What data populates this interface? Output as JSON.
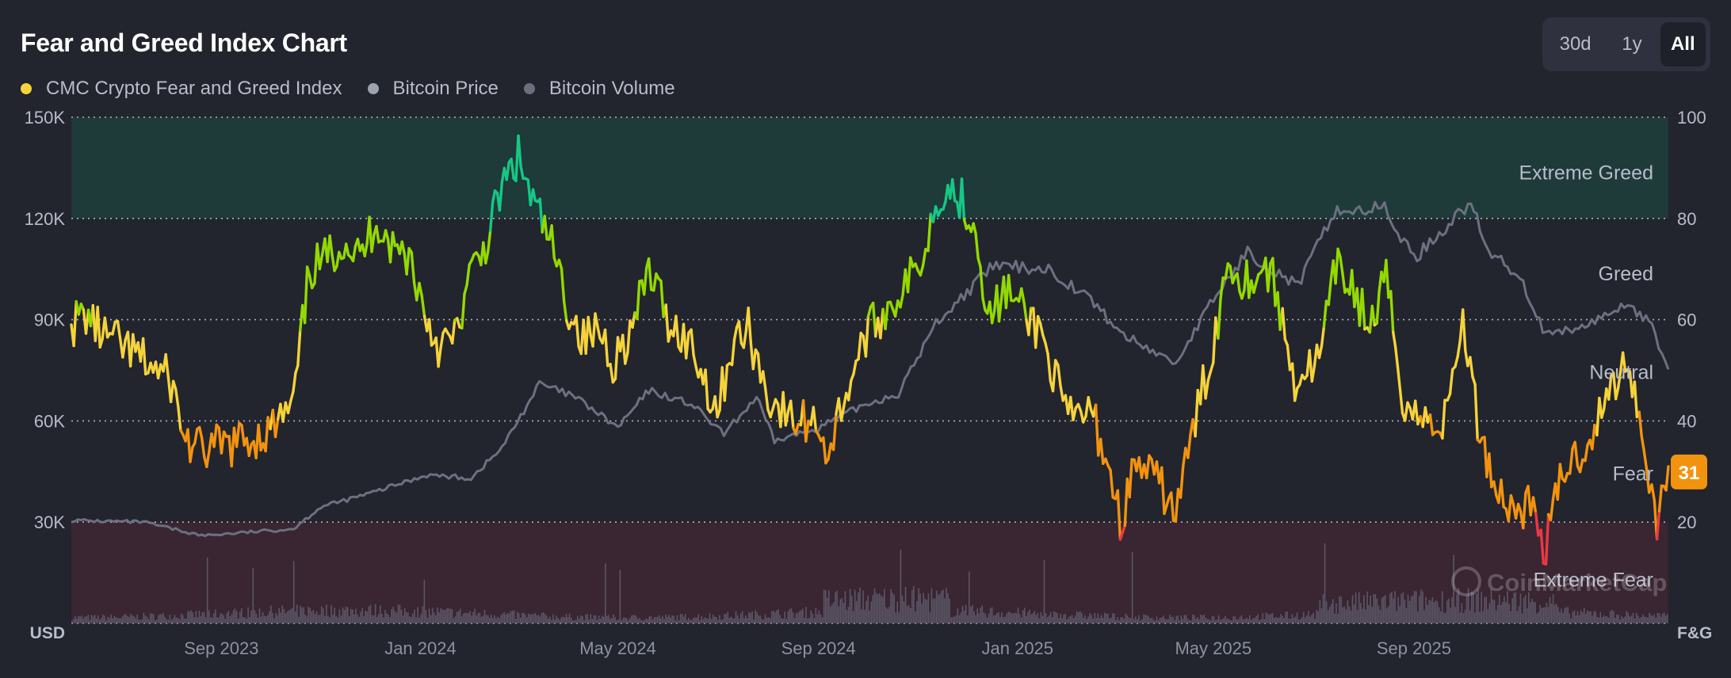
{
  "title": "Fear and Greed Index Chart",
  "legend": {
    "items": [
      {
        "label": "CMC Crypto Fear and Greed Index",
        "color": "#f5d33b"
      },
      {
        "label": "Bitcoin Price",
        "color": "#9ea3b0"
      },
      {
        "label": "Bitcoin Volume",
        "color": "#6b6f7d"
      }
    ]
  },
  "range_selector": {
    "options": [
      "30d",
      "1y",
      "All"
    ],
    "selected": "All"
  },
  "current_badge": {
    "value": "31",
    "color": "#f2930f"
  },
  "chart_data": {
    "type": "line",
    "x_axis": {
      "tick_labels": [
        "Sep 2023",
        "Jan 2024",
        "May 2024",
        "Sep 2024",
        "Jan 2025",
        "May 2025",
        "Sep 2025"
      ],
      "range": [
        "2023-06-01",
        "2026-02-04"
      ]
    },
    "y_left": {
      "label": "USD",
      "tick_labels": [
        "150K",
        "120K",
        "90K",
        "60K",
        "30K"
      ],
      "ticks": [
        150000,
        120000,
        90000,
        60000,
        30000
      ],
      "range": [
        0,
        150000
      ]
    },
    "y_right": {
      "label": "F&G",
      "tick_labels": [
        "100",
        "80",
        "60",
        "40",
        "20"
      ],
      "ticks": [
        100,
        80,
        60,
        40,
        20
      ],
      "range": [
        0,
        100
      ]
    },
    "zones": [
      {
        "label": "Extreme Greed",
        "from": 80,
        "to": 100,
        "color": "#1e3a39"
      },
      {
        "label": "Greed",
        "from": 60,
        "to": 80
      },
      {
        "label": "Neutral",
        "from": 40,
        "to": 60
      },
      {
        "label": "Fear",
        "from": 20,
        "to": 40
      },
      {
        "label": "Extreme Fear",
        "from": 0,
        "to": 20,
        "color": "#3a2532"
      }
    ],
    "grid": true,
    "watermark": "CoinMarketCap",
    "series": [
      {
        "name": "CMC Crypto Fear and Greed Index",
        "axis": "right",
        "colors": {
          "extreme_fear": "#ea3943",
          "fear": "#f2930f",
          "neutral": "#f5d33b",
          "greed": "#93d900",
          "extreme_greed": "#16c784"
        },
        "points": [
          [
            "2023-06-01",
            59
          ],
          [
            "2023-06-10",
            61
          ],
          [
            "2023-06-20",
            57
          ],
          [
            "2023-07-01",
            55
          ],
          [
            "2023-07-15",
            52
          ],
          [
            "2023-08-01",
            48
          ],
          [
            "2023-08-10",
            36
          ],
          [
            "2023-08-20",
            34
          ],
          [
            "2023-09-01",
            35
          ],
          [
            "2023-09-15",
            36
          ],
          [
            "2023-10-01",
            38
          ],
          [
            "2023-10-15",
            43
          ],
          [
            "2023-10-25",
            70
          ],
          [
            "2023-11-05",
            72
          ],
          [
            "2023-11-15",
            76
          ],
          [
            "2023-11-25",
            72
          ],
          [
            "2023-12-05",
            80
          ],
          [
            "2023-12-15",
            74
          ],
          [
            "2023-12-25",
            73
          ],
          [
            "2024-01-05",
            60
          ],
          [
            "2024-01-12",
            55
          ],
          [
            "2024-01-22",
            56
          ],
          [
            "2024-01-31",
            68
          ],
          [
            "2024-02-10",
            75
          ],
          [
            "2024-02-20",
            86
          ],
          [
            "2024-03-01",
            92
          ],
          [
            "2024-03-10",
            83
          ],
          [
            "2024-03-20",
            76
          ],
          [
            "2024-04-01",
            62
          ],
          [
            "2024-04-10",
            56
          ],
          [
            "2024-04-20",
            58
          ],
          [
            "2024-04-28",
            52
          ],
          [
            "2024-05-10",
            58
          ],
          [
            "2024-05-20",
            70
          ],
          [
            "2024-06-01",
            60
          ],
          [
            "2024-06-15",
            55
          ],
          [
            "2024-07-01",
            42
          ],
          [
            "2024-07-10",
            55
          ],
          [
            "2024-07-20",
            58
          ],
          [
            "2024-08-01",
            45
          ],
          [
            "2024-08-15",
            40
          ],
          [
            "2024-09-01",
            40
          ],
          [
            "2024-09-07",
            33
          ],
          [
            "2024-09-15",
            43
          ],
          [
            "2024-09-30",
            57
          ],
          [
            "2024-10-15",
            63
          ],
          [
            "2024-11-01",
            70
          ],
          [
            "2024-11-15",
            86
          ],
          [
            "2024-11-25",
            85
          ],
          [
            "2024-12-05",
            80
          ],
          [
            "2024-12-15",
            60
          ],
          [
            "2024-12-25",
            66
          ],
          [
            "2025-01-05",
            61
          ],
          [
            "2025-01-15",
            58
          ],
          [
            "2025-02-01",
            40
          ],
          [
            "2025-02-15",
            42
          ],
          [
            "2025-02-27",
            30
          ],
          [
            "2025-03-05",
            20
          ],
          [
            "2025-03-15",
            32
          ],
          [
            "2025-04-01",
            26
          ],
          [
            "2025-04-08",
            22
          ],
          [
            "2025-04-20",
            40
          ],
          [
            "2025-05-01",
            55
          ],
          [
            "2025-05-10",
            72
          ],
          [
            "2025-05-20",
            68
          ],
          [
            "2025-06-05",
            70
          ],
          [
            "2025-06-20",
            48
          ],
          [
            "2025-07-05",
            52
          ],
          [
            "2025-07-15",
            70
          ],
          [
            "2025-07-25",
            67
          ],
          [
            "2025-08-05",
            58
          ],
          [
            "2025-08-15",
            68
          ],
          [
            "2025-08-25",
            45
          ],
          [
            "2025-09-05",
            40
          ],
          [
            "2025-09-20",
            40
          ],
          [
            "2025-10-01",
            60
          ],
          [
            "2025-10-10",
            40
          ],
          [
            "2025-10-20",
            28
          ],
          [
            "2025-11-01",
            22
          ],
          [
            "2025-11-10",
            24
          ],
          [
            "2025-11-21",
            15
          ],
          [
            "2025-12-01",
            30
          ],
          [
            "2025-12-15",
            35
          ],
          [
            "2025-12-28",
            44
          ],
          [
            "2026-01-10",
            53
          ],
          [
            "2026-01-20",
            36
          ],
          [
            "2026-01-28",
            20
          ],
          [
            "2026-02-04",
            31
          ]
        ]
      },
      {
        "name": "Bitcoin Price",
        "axis": "left",
        "color": "#6c7080",
        "points": [
          [
            "2023-06-01",
            30500
          ],
          [
            "2023-07-15",
            30000
          ],
          [
            "2023-08-20",
            26000
          ],
          [
            "2023-10-15",
            28000
          ],
          [
            "2023-11-01",
            34500
          ],
          [
            "2023-12-01",
            38500
          ],
          [
            "2024-01-05",
            44000
          ],
          [
            "2024-02-01",
            43000
          ],
          [
            "2024-02-20",
            52000
          ],
          [
            "2024-03-14",
            71000
          ],
          [
            "2024-04-05",
            67000
          ],
          [
            "2024-05-01",
            58000
          ],
          [
            "2024-05-20",
            69000
          ],
          [
            "2024-06-15",
            65000
          ],
          [
            "2024-07-05",
            56000
          ],
          [
            "2024-07-25",
            67000
          ],
          [
            "2024-08-05",
            54000
          ],
          [
            "2024-09-01",
            58000
          ],
          [
            "2024-09-30",
            65000
          ],
          [
            "2024-10-20",
            68000
          ],
          [
            "2024-11-12",
            89000
          ],
          [
            "2024-12-05",
            100000
          ],
          [
            "2024-12-17",
            106000
          ],
          [
            "2025-01-20",
            105000
          ],
          [
            "2025-02-15",
            96000
          ],
          [
            "2025-03-05",
            86000
          ],
          [
            "2025-04-08",
            77000
          ],
          [
            "2025-05-01",
            96000
          ],
          [
            "2025-05-22",
            110000
          ],
          [
            "2025-06-22",
            100000
          ],
          [
            "2025-07-14",
            122000
          ],
          [
            "2025-08-14",
            123000
          ],
          [
            "2025-09-01",
            108000
          ],
          [
            "2025-10-06",
            125000
          ],
          [
            "2025-10-15",
            111000
          ],
          [
            "2025-11-05",
            103000
          ],
          [
            "2025-11-21",
            85000
          ],
          [
            "2025-12-15",
            88000
          ],
          [
            "2026-01-10",
            95000
          ],
          [
            "2026-01-25",
            88000
          ],
          [
            "2026-02-04",
            75000
          ]
        ]
      },
      {
        "name": "Bitcoin Volume",
        "axis": "left",
        "color": "#6b6f7d",
        "type": "bar"
      }
    ]
  }
}
